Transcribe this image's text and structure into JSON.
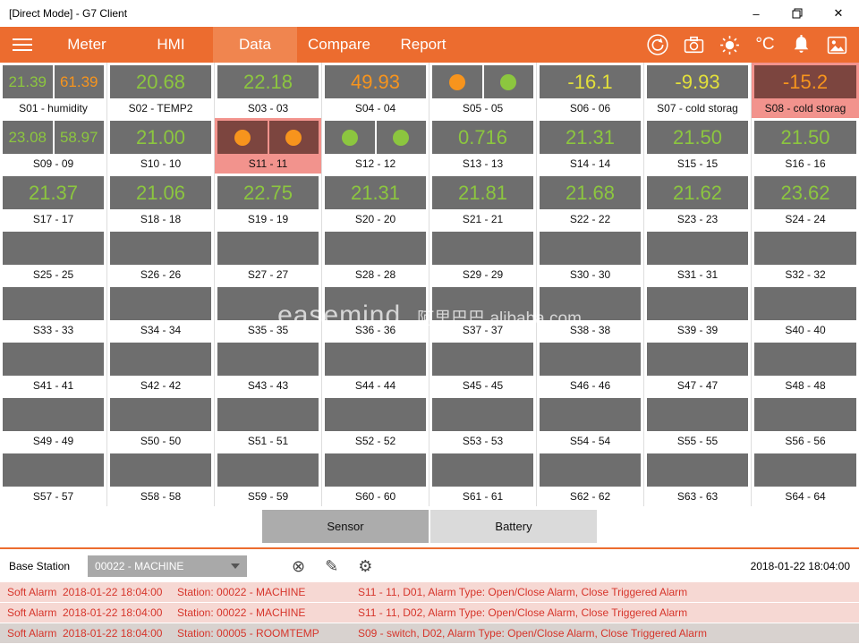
{
  "window": {
    "title": "[Direct Mode] - G7 Client",
    "minimize": "–",
    "close": "✕"
  },
  "nav": {
    "tabs": [
      "Meter",
      "HMI",
      "Data",
      "Compare",
      "Report"
    ],
    "active_tab": "Data",
    "unit_label": "°C"
  },
  "theme": {
    "accent_orange": "#EC6C2F",
    "tile_box_gray": "#6E6E6E",
    "alarm_tile_bg": "#F2938D",
    "alarm_box_bg": "#7C453F",
    "alarm_row_bg": "#F6D8D3",
    "alarm_text_red": "#D6352B"
  },
  "colors": {
    "green": "#8CC63F",
    "orange": "#F7941D",
    "yellow": "#E3E03A"
  },
  "grid": {
    "tiles": [
      {
        "id": "S01",
        "label": "S01 - humidity",
        "type": "dual-value",
        "values": [
          "21.39",
          "61.39"
        ],
        "value_colors": [
          "green",
          "orange"
        ]
      },
      {
        "id": "S02",
        "label": "S02 - TEMP2",
        "type": "value",
        "value": "20.68",
        "color": "green"
      },
      {
        "id": "S03",
        "label": "S03 - 03",
        "type": "value",
        "value": "22.18",
        "color": "green"
      },
      {
        "id": "S04",
        "label": "S04 - 04",
        "type": "value",
        "value": "49.93",
        "color": "orange"
      },
      {
        "id": "S05",
        "label": "S05 - 05",
        "type": "dual-led",
        "leds": [
          "orange",
          "green"
        ]
      },
      {
        "id": "S06",
        "label": "S06 - 06",
        "type": "value",
        "value": "-16.1",
        "color": "yellow"
      },
      {
        "id": "S07",
        "label": "S07 - cold storag",
        "type": "value",
        "value": "-9.93",
        "color": "yellow"
      },
      {
        "id": "S08",
        "label": "S08 - cold storag",
        "type": "value",
        "value": "-15.2",
        "color": "orange",
        "alarm": true
      },
      {
        "id": "S09",
        "label": "S09 - 09",
        "type": "dual-value",
        "values": [
          "23.08",
          "58.97"
        ],
        "value_colors": [
          "green",
          "green"
        ]
      },
      {
        "id": "S10",
        "label": "S10 - 10",
        "type": "value",
        "value": "21.00",
        "color": "green"
      },
      {
        "id": "S11",
        "label": "S11 - 11",
        "type": "dual-led",
        "leds": [
          "orange",
          "orange"
        ],
        "alarm": true
      },
      {
        "id": "S12",
        "label": "S12 - 12",
        "type": "dual-led",
        "leds": [
          "green",
          "green"
        ]
      },
      {
        "id": "S13",
        "label": "S13 - 13",
        "type": "value",
        "value": "0.716",
        "color": "green"
      },
      {
        "id": "S14",
        "label": "S14 - 14",
        "type": "value",
        "value": "21.31",
        "color": "green"
      },
      {
        "id": "S15",
        "label": "S15 - 15",
        "type": "value",
        "value": "21.50",
        "color": "green"
      },
      {
        "id": "S16",
        "label": "S16 - 16",
        "type": "value",
        "value": "21.50",
        "color": "green"
      },
      {
        "id": "S17",
        "label": "S17 - 17",
        "type": "value",
        "value": "21.37",
        "color": "green"
      },
      {
        "id": "S18",
        "label": "S18 - 18",
        "type": "value",
        "value": "21.06",
        "color": "green"
      },
      {
        "id": "S19",
        "label": "S19 - 19",
        "type": "value",
        "value": "22.75",
        "color": "green"
      },
      {
        "id": "S20",
        "label": "S20 - 20",
        "type": "value",
        "value": "21.31",
        "color": "green"
      },
      {
        "id": "S21",
        "label": "S21 - 21",
        "type": "value",
        "value": "21.81",
        "color": "green"
      },
      {
        "id": "S22",
        "label": "S22 - 22",
        "type": "value",
        "value": "21.68",
        "color": "green"
      },
      {
        "id": "S23",
        "label": "S23 - 23",
        "type": "value",
        "value": "21.62",
        "color": "green"
      },
      {
        "id": "S24",
        "label": "S24 - 24",
        "type": "value",
        "value": "23.62",
        "color": "green"
      },
      {
        "id": "S25",
        "label": "S25 - 25",
        "type": "empty"
      },
      {
        "id": "S26",
        "label": "S26 - 26",
        "type": "empty"
      },
      {
        "id": "S27",
        "label": "S27 - 27",
        "type": "empty"
      },
      {
        "id": "S28",
        "label": "S28 - 28",
        "type": "empty"
      },
      {
        "id": "S29",
        "label": "S29 - 29",
        "type": "empty"
      },
      {
        "id": "S30",
        "label": "S30 - 30",
        "type": "empty"
      },
      {
        "id": "S31",
        "label": "S31 - 31",
        "type": "empty"
      },
      {
        "id": "S32",
        "label": "S32 - 32",
        "type": "empty"
      },
      {
        "id": "S33",
        "label": "S33 - 33",
        "type": "empty"
      },
      {
        "id": "S34",
        "label": "S34 - 34",
        "type": "empty"
      },
      {
        "id": "S35",
        "label": "S35 - 35",
        "type": "empty"
      },
      {
        "id": "S36",
        "label": "S36 - 36",
        "type": "empty"
      },
      {
        "id": "S37",
        "label": "S37 - 37",
        "type": "empty"
      },
      {
        "id": "S38",
        "label": "S38 - 38",
        "type": "empty"
      },
      {
        "id": "S39",
        "label": "S39 - 39",
        "type": "empty"
      },
      {
        "id": "S40",
        "label": "S40 - 40",
        "type": "empty"
      },
      {
        "id": "S41",
        "label": "S41 - 41",
        "type": "empty"
      },
      {
        "id": "S42",
        "label": "S42 - 42",
        "type": "empty"
      },
      {
        "id": "S43",
        "label": "S43 - 43",
        "type": "empty"
      },
      {
        "id": "S44",
        "label": "S44 - 44",
        "type": "empty"
      },
      {
        "id": "S45",
        "label": "S45 - 45",
        "type": "empty"
      },
      {
        "id": "S46",
        "label": "S46 - 46",
        "type": "empty"
      },
      {
        "id": "S47",
        "label": "S47 - 47",
        "type": "empty"
      },
      {
        "id": "S48",
        "label": "S48 - 48",
        "type": "empty"
      },
      {
        "id": "S49",
        "label": "S49 - 49",
        "type": "empty"
      },
      {
        "id": "S50",
        "label": "S50 - 50",
        "type": "empty"
      },
      {
        "id": "S51",
        "label": "S51 - 51",
        "type": "empty"
      },
      {
        "id": "S52",
        "label": "S52 - 52",
        "type": "empty"
      },
      {
        "id": "S53",
        "label": "S53 - 53",
        "type": "empty"
      },
      {
        "id": "S54",
        "label": "S54 - 54",
        "type": "empty"
      },
      {
        "id": "S55",
        "label": "S55 - 55",
        "type": "empty"
      },
      {
        "id": "S56",
        "label": "S56 - 56",
        "type": "empty"
      },
      {
        "id": "S57",
        "label": "S57 - 57",
        "type": "empty"
      },
      {
        "id": "S58",
        "label": "S58 - 58",
        "type": "empty"
      },
      {
        "id": "S59",
        "label": "S59 - 59",
        "type": "empty"
      },
      {
        "id": "S60",
        "label": "S60 - 60",
        "type": "empty"
      },
      {
        "id": "S61",
        "label": "S61 - 61",
        "type": "empty"
      },
      {
        "id": "S62",
        "label": "S62 - 62",
        "type": "empty"
      },
      {
        "id": "S63",
        "label": "S63 - 63",
        "type": "empty"
      },
      {
        "id": "S64",
        "label": "S64 - 64",
        "type": "empty"
      }
    ]
  },
  "watermark": {
    "brand": "easemind",
    "alibaba": "阿里巴巴 alibaba.com"
  },
  "view_buttons": {
    "sensor": "Sensor",
    "battery": "Battery"
  },
  "base_station": {
    "label": "Base Station",
    "selected": "00022 - MACHINE",
    "icons": {
      "clear": "⊗",
      "edit": "✎",
      "settings": "⚙"
    },
    "timestamp": "2018-01-22 18:04:00"
  },
  "alarms": [
    {
      "type": "Soft Alarm",
      "time": "2018-01-22 18:04:00",
      "station": "Station: 00022 - MACHINE",
      "detail": "S11 - 11, D01, Alarm Type: Open/Close Alarm, Close Triggered Alarm",
      "selected": false
    },
    {
      "type": "Soft Alarm",
      "time": "2018-01-22 18:04:00",
      "station": "Station: 00022 - MACHINE",
      "detail": "S11 - 11, D02, Alarm Type: Open/Close Alarm, Close Triggered Alarm",
      "selected": false
    },
    {
      "type": "Soft Alarm",
      "time": "2018-01-22 18:04:00",
      "station": "Station: 00005 - ROOMTEMP",
      "detail": "S09 - switch, D02, Alarm Type: Open/Close Alarm, Close Triggered Alarm",
      "selected": true
    }
  ]
}
